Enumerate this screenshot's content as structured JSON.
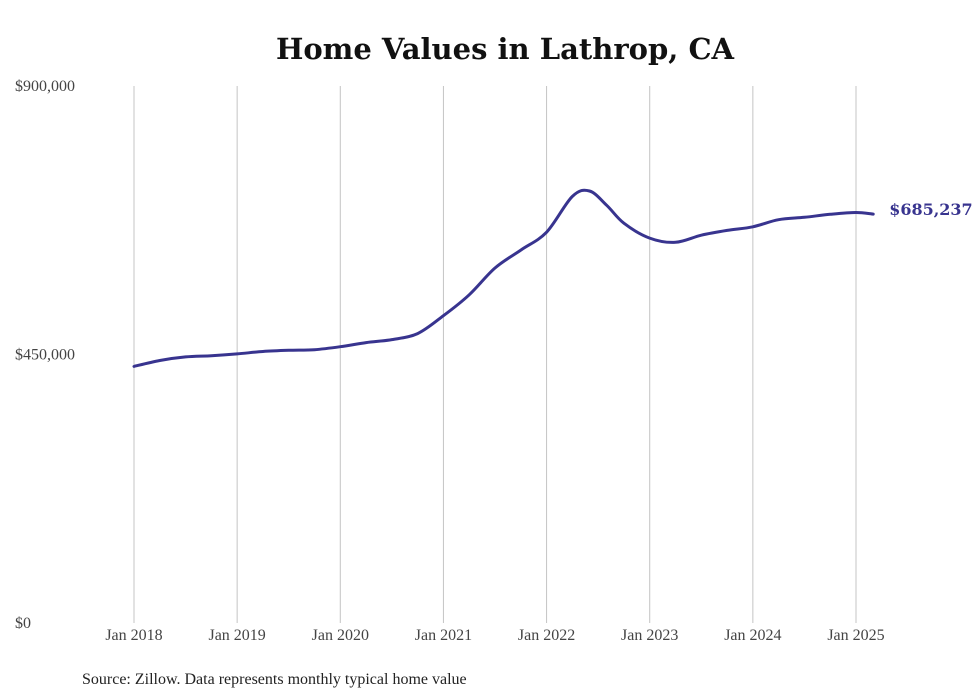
{
  "chart_data": {
    "type": "line",
    "title": "Home Values in Lathrop, CA",
    "source": "Source: Zillow. Data represents monthly typical home value",
    "xlabel": "",
    "ylabel": "",
    "ylim": [
      0,
      900000
    ],
    "y_ticks": [
      {
        "value": 0,
        "label": "$0"
      },
      {
        "value": 450000,
        "label": "$450,000"
      },
      {
        "value": 900000,
        "label": "$900,000"
      }
    ],
    "x_ticks": [
      {
        "value": "2018-01",
        "label": "Jan 2018"
      },
      {
        "value": "2019-01",
        "label": "Jan 2019"
      },
      {
        "value": "2020-01",
        "label": "Jan 2020"
      },
      {
        "value": "2021-01",
        "label": "Jan 2021"
      },
      {
        "value": "2022-01",
        "label": "Jan 2022"
      },
      {
        "value": "2023-01",
        "label": "Jan 2023"
      },
      {
        "value": "2024-01",
        "label": "Jan 2024"
      },
      {
        "value": "2025-01",
        "label": "Jan 2025"
      }
    ],
    "grid": {
      "vertical": true,
      "horizontal": false
    },
    "line_color": "#38348f",
    "end_label": "$685,237",
    "series": [
      {
        "points": [
          {
            "x": "2018-01",
            "y": 430000
          },
          {
            "x": "2018-04",
            "y": 440000
          },
          {
            "x": "2018-07",
            "y": 446000
          },
          {
            "x": "2018-10",
            "y": 448000
          },
          {
            "x": "2019-01",
            "y": 451000
          },
          {
            "x": "2019-04",
            "y": 455000
          },
          {
            "x": "2019-07",
            "y": 457000
          },
          {
            "x": "2019-10",
            "y": 458000
          },
          {
            "x": "2020-01",
            "y": 463000
          },
          {
            "x": "2020-04",
            "y": 470000
          },
          {
            "x": "2020-07",
            "y": 475000
          },
          {
            "x": "2020-10",
            "y": 485000
          },
          {
            "x": "2021-01",
            "y": 515000
          },
          {
            "x": "2021-04",
            "y": 550000
          },
          {
            "x": "2021-07",
            "y": 595000
          },
          {
            "x": "2021-10",
            "y": 625000
          },
          {
            "x": "2022-01",
            "y": 655000
          },
          {
            "x": "2022-04",
            "y": 715000
          },
          {
            "x": "2022-06",
            "y": 724000
          },
          {
            "x": "2022-08",
            "y": 700000
          },
          {
            "x": "2022-10",
            "y": 670000
          },
          {
            "x": "2023-01",
            "y": 645000
          },
          {
            "x": "2023-04",
            "y": 638000
          },
          {
            "x": "2023-07",
            "y": 650000
          },
          {
            "x": "2023-10",
            "y": 658000
          },
          {
            "x": "2024-01",
            "y": 664000
          },
          {
            "x": "2024-04",
            "y": 676000
          },
          {
            "x": "2024-07",
            "y": 680000
          },
          {
            "x": "2024-10",
            "y": 685000
          },
          {
            "x": "2025-01",
            "y": 688000
          },
          {
            "x": "2025-03",
            "y": 685237
          }
        ]
      }
    ]
  }
}
